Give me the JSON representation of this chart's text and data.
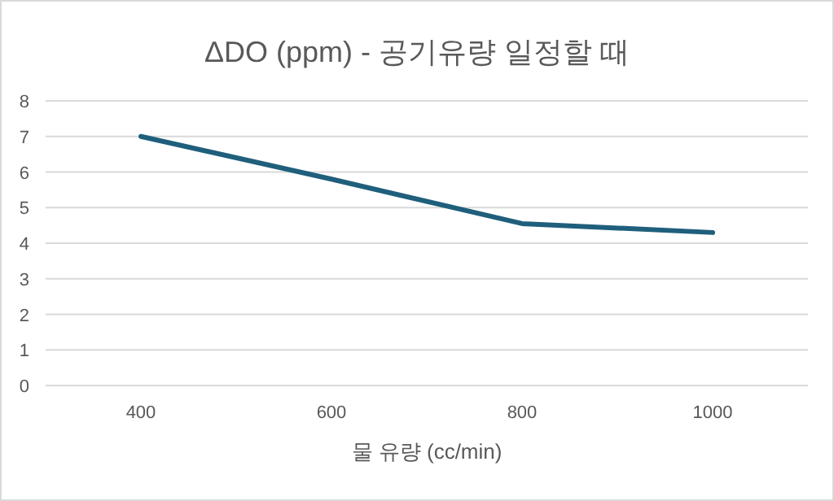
{
  "chart_data": {
    "type": "line",
    "title": "ΔDO (ppm) - 공기유량 일정할 때",
    "xlabel": "물 유량 (cc/min)",
    "categories": [
      "400",
      "600",
      "800",
      "1000"
    ],
    "series": [
      {
        "color": "#1f5f7c",
        "values": [
          7.0,
          5.8,
          4.55,
          4.3
        ]
      }
    ],
    "ylim": [
      0,
      8
    ],
    "yticks": [
      0,
      1,
      2,
      3,
      4,
      5,
      6,
      7,
      8
    ],
    "grid": "y",
    "marker": "none",
    "line_style": "solid"
  }
}
